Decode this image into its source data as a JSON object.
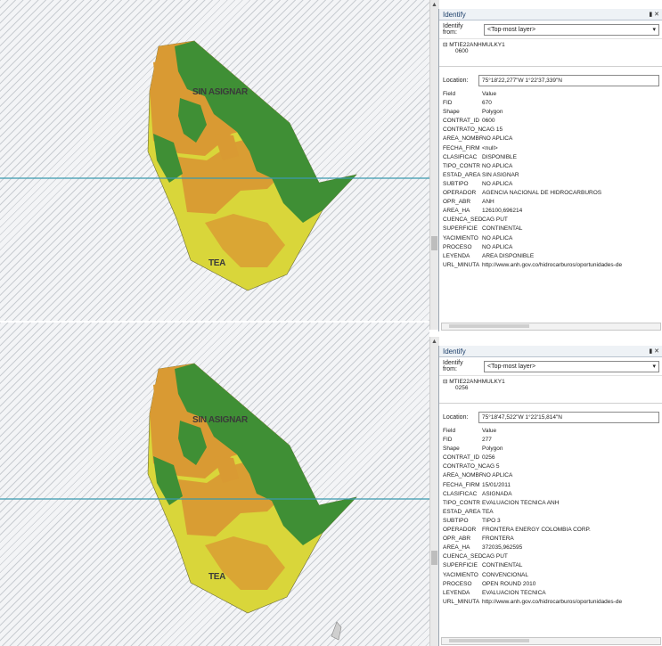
{
  "map_labels": {
    "top": "SIN ASIGNAR",
    "bottom": "TEA"
  },
  "colors": {
    "green": "#3f8f35",
    "orange": "#d99a33",
    "yellow": "#d9d63a",
    "line": "#3a9ab0"
  },
  "panels": [
    {
      "title": "Identify",
      "identify_from_label": "Identify from:",
      "identify_from_value": "<Top-most layer>",
      "tree_node": "MTIE22ANHMULKY1",
      "tree_child": "0600",
      "location_label": "Location:",
      "location_value": "75°18'22,277\"W  1°22'37,339\"N",
      "field_header": "Field",
      "value_header": "Value",
      "rows": [
        {
          "f": "FID",
          "v": "670"
        },
        {
          "f": "Shape",
          "v": "Polygon"
        },
        {
          "f": "CONTRAT_ID",
          "v": "0600"
        },
        {
          "f": "CONTRATO_N",
          "v": "CAG 15"
        },
        {
          "f": "AREA_NOMBR",
          "v": "NO APLICA"
        },
        {
          "f": "FECHA_FIRM",
          "v": "<null>"
        },
        {
          "f": "CLASIFICAC",
          "v": "DISPONIBLE"
        },
        {
          "f": "TIPO_CONTR",
          "v": "NO APLICA"
        },
        {
          "f": "ESTAD_AREA",
          "v": "SIN ASIGNAR"
        },
        {
          "f": "SUBTIPO",
          "v": "NO APLICA"
        },
        {
          "f": "OPERADOR",
          "v": "AGENCIA NACIONAL DE HIDROCARBUROS"
        },
        {
          "f": "OPR_ABR",
          "v": "ANH"
        },
        {
          "f": "AREA_HA",
          "v": "126100,696214"
        },
        {
          "f": "CUENCA_SED",
          "v": "CAG PUT"
        },
        {
          "f": "SUPERFICIE",
          "v": "CONTINENTAL"
        },
        {
          "f": "YACIMIENTO",
          "v": "NO APLICA"
        },
        {
          "f": "PROCESO",
          "v": "NO APLICA"
        },
        {
          "f": "LEYENDA",
          "v": "AREA DISPONIBLE"
        },
        {
          "f": "URL_MINUTA",
          "v": "http://www.anh.gov.co/hidrocarburos/oportunidades-de"
        }
      ]
    },
    {
      "title": "Identify",
      "identify_from_label": "Identify from:",
      "identify_from_value": "<Top-most layer>",
      "tree_node": "MTIE22ANHMULKY1",
      "tree_child": "0256",
      "location_label": "Location:",
      "location_value": "75°18'47,522\"W  1°22'15,814\"N",
      "field_header": "Field",
      "value_header": "Value",
      "rows": [
        {
          "f": "FID",
          "v": "277"
        },
        {
          "f": "Shape",
          "v": "Polygon"
        },
        {
          "f": "CONTRAT_ID",
          "v": "0256"
        },
        {
          "f": "CONTRATO_N",
          "v": "CAG 5"
        },
        {
          "f": "AREA_NOMBR",
          "v": "NO APLICA"
        },
        {
          "f": "FECHA_FIRM",
          "v": "15/01/2011"
        },
        {
          "f": "CLASIFICAC",
          "v": "ASIGNADA"
        },
        {
          "f": "TIPO_CONTR",
          "v": "EVALUACION TECNICA ANH"
        },
        {
          "f": "ESTAD_AREA",
          "v": "TEA"
        },
        {
          "f": "SUBTIPO",
          "v": "TIPO 3"
        },
        {
          "f": "OPERADOR",
          "v": "FRONTERA ENERGY COLOMBIA CORP."
        },
        {
          "f": "OPR_ABR",
          "v": "FRONTERA"
        },
        {
          "f": "AREA_HA",
          "v": "372035,962595"
        },
        {
          "f": "CUENCA_SED",
          "v": "CAG PUT"
        },
        {
          "f": "SUPERFICIE",
          "v": "CONTINENTAL"
        },
        {
          "f": "YACIMIENTO",
          "v": "CONVENCIONAL"
        },
        {
          "f": "PROCESO",
          "v": "OPEN ROUND 2010"
        },
        {
          "f": "LEYENDA",
          "v": "EVALUACION TECNICA"
        },
        {
          "f": "URL_MINUTA",
          "v": "http://www.anh.gov.co/hidrocarburos/oportunidades-de"
        }
      ]
    }
  ]
}
